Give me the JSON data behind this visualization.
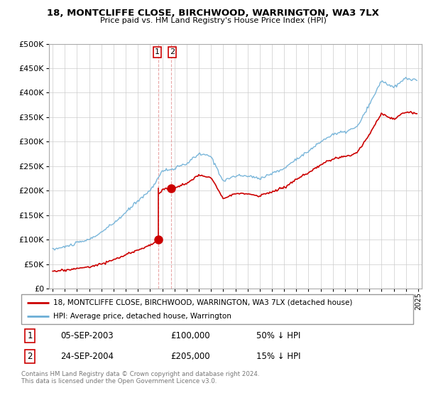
{
  "title": "18, MONTCLIFFE CLOSE, BIRCHWOOD, WARRINGTON, WA3 7LX",
  "subtitle": "Price paid vs. HM Land Registry's House Price Index (HPI)",
  "red_legend": "18, MONTCLIFFE CLOSE, BIRCHWOOD, WARRINGTON, WA3 7LX (detached house)",
  "blue_legend": "HPI: Average price, detached house, Warrington",
  "transaction_1_date": "05-SEP-2003",
  "transaction_1_price": "£100,000",
  "transaction_1_pct": "50% ↓ HPI",
  "transaction_2_date": "24-SEP-2004",
  "transaction_2_price": "£205,000",
  "transaction_2_pct": "15% ↓ HPI",
  "footer": "Contains HM Land Registry data © Crown copyright and database right 2024.\nThis data is licensed under the Open Government Licence v3.0.",
  "red_color": "#cc0000",
  "blue_color": "#6baed6",
  "dashed_color": "#cc0000",
  "ylim": [
    0,
    500000
  ],
  "yticks": [
    0,
    50000,
    100000,
    150000,
    200000,
    250000,
    300000,
    350000,
    400000,
    450000,
    500000
  ],
  "sale1_year": 2003.67,
  "sale1_price": 100000,
  "sale2_year": 2004.73,
  "sale2_price": 205000,
  "hpi_base_points_x": [
    1995,
    1996,
    1997,
    1998,
    1999,
    2000,
    2001,
    2002,
    2003,
    2004,
    2005,
    2006,
    2007,
    2008,
    2009,
    2010,
    2011,
    2012,
    2013,
    2014,
    2015,
    2016,
    2017,
    2018,
    2019,
    2020,
    2021,
    2022,
    2023,
    2024,
    2024.9
  ],
  "hpi_base_points_y": [
    80000,
    85000,
    93000,
    100000,
    115000,
    133000,
    155000,
    180000,
    200000,
    240000,
    245000,
    255000,
    275000,
    270000,
    220000,
    230000,
    230000,
    225000,
    235000,
    245000,
    265000,
    280000,
    300000,
    315000,
    320000,
    330000,
    375000,
    425000,
    410000,
    430000,
    425000
  ]
}
